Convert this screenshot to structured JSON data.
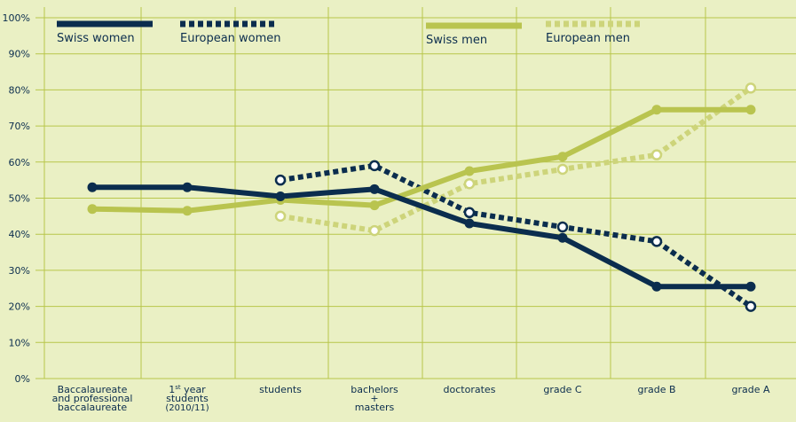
{
  "colors": {
    "background": "#eaf0c4",
    "swiss_women": "#0b2d4e",
    "european_women": "#0b2d4e",
    "swiss_men": "#b9c44f",
    "european_men": "#cdd47a",
    "gridline": "#b8c64a",
    "axis_text": "#0b2d4e"
  },
  "chart_data": {
    "type": "line",
    "title": "",
    "xlabel": "",
    "ylabel": "",
    "ylim": [
      0,
      100
    ],
    "y_ticks": [
      "0%",
      "10%",
      "20%",
      "30%",
      "40%",
      "50%",
      "60%",
      "70%",
      "80%",
      "90%",
      "100%"
    ],
    "x_ticks": [
      {
        "label": [
          "Baccalaureate",
          "and professional",
          "baccalaureate"
        ]
      },
      {
        "label": [
          "1st year",
          "students",
          "(2010/11)"
        ]
      },
      {
        "label": [
          "students"
        ]
      },
      {
        "label": [
          "bachelors",
          "+",
          "masters"
        ]
      },
      {
        "label": [
          "doctorates"
        ]
      },
      {
        "label": [
          "grade C"
        ]
      },
      {
        "label": [
          "grade B"
        ]
      },
      {
        "label": [
          "grade A"
        ]
      }
    ],
    "categories": [
      "Baccalaureate and professional baccalaureate",
      "1st year students (2010/11)",
      "students",
      "bachelors + masters",
      "doctorates",
      "grade C",
      "grade B",
      "grade A"
    ],
    "grid": true,
    "legend_position": "top",
    "series": [
      {
        "name": "Swiss women",
        "style": "solid",
        "marker": "filled",
        "color_key": "swiss_women",
        "values": [
          53,
          53,
          50.5,
          52.5,
          43,
          39,
          25.5,
          25.5
        ]
      },
      {
        "name": "European women",
        "style": "dotted",
        "marker": "open",
        "color_key": "european_women",
        "values": [
          null,
          null,
          55,
          59,
          46,
          42,
          38,
          20
        ]
      },
      {
        "name": "Swiss men",
        "style": "solid",
        "marker": "filled",
        "color_key": "swiss_men",
        "values": [
          47,
          46.5,
          49.5,
          48,
          57.5,
          61.5,
          74.5,
          74.5
        ]
      },
      {
        "name": "European men",
        "style": "dotted",
        "marker": "open",
        "color_key": "european_men",
        "values": [
          null,
          null,
          45,
          41,
          54,
          58,
          62,
          80.5
        ]
      }
    ]
  }
}
